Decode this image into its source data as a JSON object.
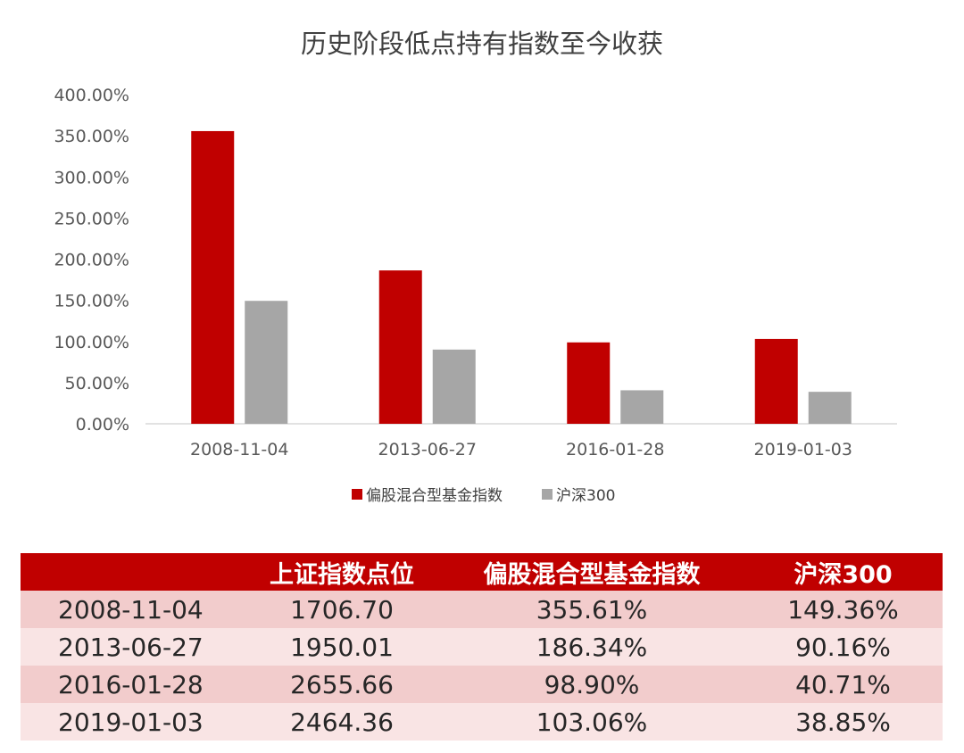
{
  "colors": {
    "fund_series": "#c00000",
    "hs300_series": "#a6a6a6",
    "table_header": "#c00000",
    "row_odd": "#f2cccc",
    "row_even": "#f9e4e4"
  },
  "chart_data": {
    "type": "bar",
    "title": "历史阶段低点持有指数至今收获",
    "categories": [
      "2008-11-04",
      "2013-06-27",
      "2016-01-28",
      "2019-01-03"
    ],
    "series": [
      {
        "name": "偏股混合型基金指数",
        "values": [
          355.61,
          186.34,
          98.9,
          103.06
        ]
      },
      {
        "name": "沪深300",
        "values": [
          149.36,
          90.16,
          40.71,
          38.85
        ]
      }
    ],
    "ylim": [
      0,
      400
    ],
    "y_ticks": [
      "0.00%",
      "50.00%",
      "100.00%",
      "150.00%",
      "200.00%",
      "250.00%",
      "300.00%",
      "350.00%",
      "400.00%"
    ],
    "grid": false,
    "legend_position": "bottom"
  },
  "table": {
    "headers": [
      "",
      "上证指数点位",
      "偏股混合型基金指数",
      "沪深300"
    ],
    "rows": [
      [
        "2008-11-04",
        "1706.70",
        "355.61%",
        "149.36%"
      ],
      [
        "2013-06-27",
        "1950.01",
        "186.34%",
        "90.16%"
      ],
      [
        "2016-01-28",
        "2655.66",
        "98.90%",
        "40.71%"
      ],
      [
        "2019-01-03",
        "2464.36",
        "103.06%",
        "38.85%"
      ]
    ]
  }
}
